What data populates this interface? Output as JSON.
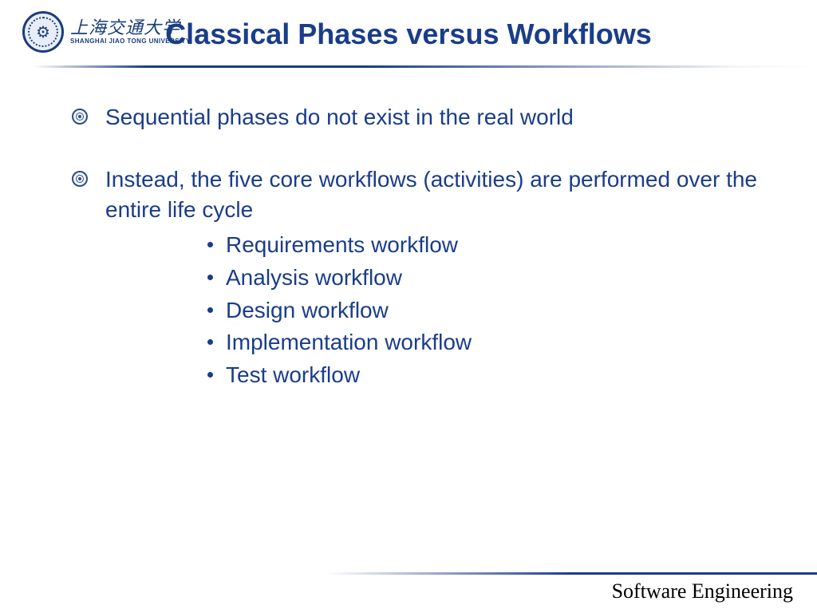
{
  "theme": {
    "title_color": "#1a3d8a",
    "text_color": "#1a3d8a",
    "background_color": "#ffffff",
    "footer_text_color": "#000000",
    "title_fontsize": 36,
    "body_fontsize": 28,
    "footer_fontsize": 26
  },
  "header": {
    "university_script": "上海交通大学",
    "university_eng": "SHANGHAI JIAO TONG UNIVERSITY",
    "title": "Classical Phases versus Workflows"
  },
  "bullets": {
    "item1": "Sequential phases do not exist in the real world",
    "item2": "Instead, the five core workflows (activities) are performed over the entire life cycle"
  },
  "sublist": {
    "s1": "Requirements workflow",
    "s2": "Analysis workflow",
    "s3": "Design workflow",
    "s4": "Implementation workflow",
    "s5": "Test workflow"
  },
  "footer": {
    "text": "Software Engineering"
  }
}
